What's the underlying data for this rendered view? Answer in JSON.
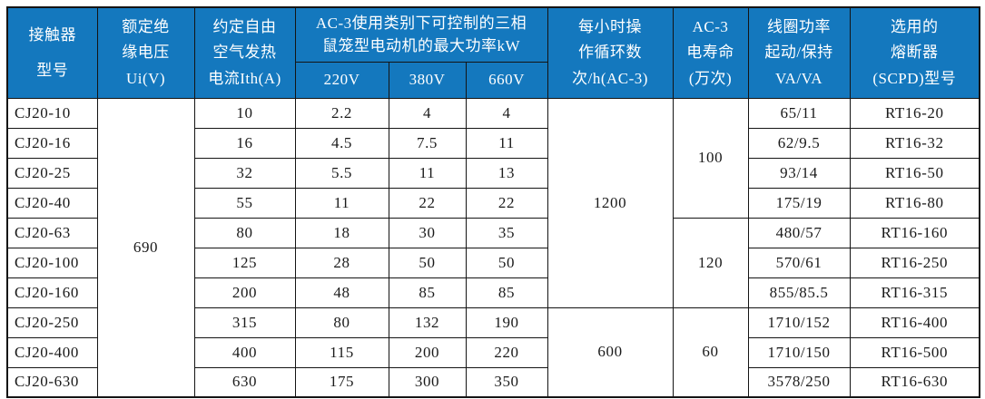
{
  "colors": {
    "header_bg": "#1478BE",
    "header_text": "#FFFFFF",
    "border": "#141414",
    "body_text": "#1A1A1A",
    "body_bg": "#FFFFFF"
  },
  "table": {
    "header": {
      "model": {
        "lines": [
          "接触器",
          "型号"
        ]
      },
      "ui": {
        "lines": [
          "额定绝",
          "缘电压",
          "Ui(V)"
        ]
      },
      "ith": {
        "lines": [
          "约定自由",
          "空气发热",
          "电流Ith(A)"
        ]
      },
      "ac3_group": {
        "lines": [
          "AC-3使用类别下可控制的三相",
          "鼠笼型电动机的最大功率kW"
        ]
      },
      "sub_220": "220V",
      "sub_380": "380V",
      "sub_660": "660V",
      "cycles": {
        "lines": [
          "每小时操",
          "作循环数",
          "次/h(AC-3)"
        ]
      },
      "life": {
        "lines": [
          "AC-3",
          "电寿命",
          "(万次)"
        ]
      },
      "coil": {
        "lines": [
          "线圈功率",
          "起动/保持",
          "VA/VA"
        ]
      },
      "fuse": {
        "lines": [
          "选用的",
          "熔断器",
          "(SCPD)型号"
        ]
      }
    },
    "rows": [
      {
        "model": "CJ20-10",
        "ith": "10",
        "p220": "2.2",
        "p380": "4",
        "p660": "4",
        "coil": "65/11",
        "fuse": "RT16-20"
      },
      {
        "model": "CJ20-16",
        "ith": "16",
        "p220": "4.5",
        "p380": "7.5",
        "p660": "11",
        "coil": "62/9.5",
        "fuse": "RT16-32"
      },
      {
        "model": "CJ20-25",
        "ith": "32",
        "p220": "5.5",
        "p380": "11",
        "p660": "13",
        "coil": "93/14",
        "fuse": "RT16-50"
      },
      {
        "model": "CJ20-40",
        "ith": "55",
        "p220": "11",
        "p380": "22",
        "p660": "22",
        "coil": "175/19",
        "fuse": "RT16-80"
      },
      {
        "model": "CJ20-63",
        "ith": "80",
        "p220": "18",
        "p380": "30",
        "p660": "35",
        "coil": "480/57",
        "fuse": "RT16-160"
      },
      {
        "model": "CJ20-100",
        "ith": "125",
        "p220": "28",
        "p380": "50",
        "p660": "50",
        "coil": "570/61",
        "fuse": "RT16-250"
      },
      {
        "model": "CJ20-160",
        "ith": "200",
        "p220": "48",
        "p380": "85",
        "p660": "85",
        "coil": "855/85.5",
        "fuse": "RT16-315"
      },
      {
        "model": "CJ20-250",
        "ith": "315",
        "p220": "80",
        "p380": "132",
        "p660": "190",
        "coil": "1710/152",
        "fuse": "RT16-400"
      },
      {
        "model": "CJ20-400",
        "ith": "400",
        "p220": "115",
        "p380": "200",
        "p660": "220",
        "coil": "1710/150",
        "fuse": "RT16-500"
      },
      {
        "model": "CJ20-630",
        "ith": "630",
        "p220": "175",
        "p380": "300",
        "p660": "350",
        "coil": "3578/250",
        "fuse": "RT16-630"
      }
    ],
    "spans": {
      "ui": [
        {
          "row": 0,
          "span": 10,
          "value": "690"
        }
      ],
      "cycles": [
        {
          "row": 0,
          "span": 7,
          "value": "1200"
        },
        {
          "row": 7,
          "span": 3,
          "value": "600"
        }
      ],
      "life": [
        {
          "row": 0,
          "span": 4,
          "value": "100"
        },
        {
          "row": 4,
          "span": 3,
          "value": "120"
        },
        {
          "row": 7,
          "span": 3,
          "value": "60"
        }
      ]
    }
  }
}
